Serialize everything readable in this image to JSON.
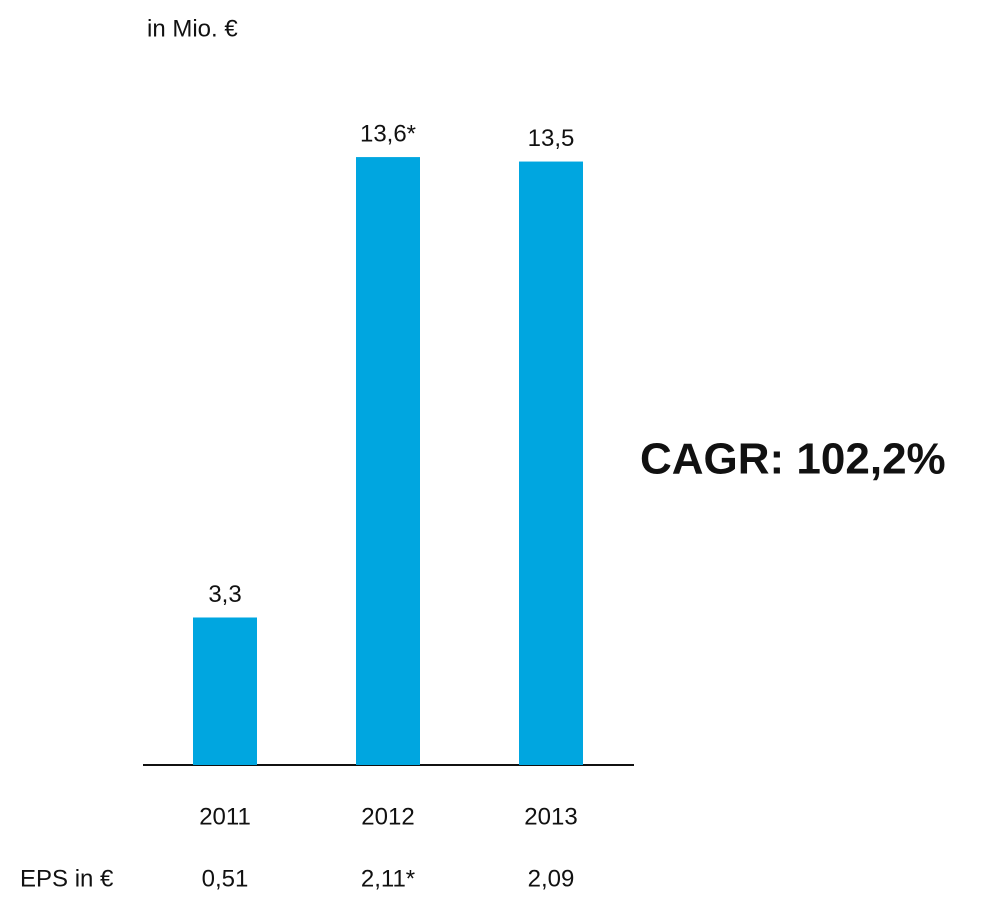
{
  "chart_data": {
    "type": "bar",
    "subtitle": "in Mio. €",
    "annotation": "CAGR: 102,2%",
    "categories": [
      "2011",
      "2012",
      "2013"
    ],
    "values": [
      3.3,
      13.6,
      13.5
    ],
    "value_labels": [
      "3,3",
      "13,6*",
      "13,5"
    ],
    "color": "#00a6e0",
    "eps": {
      "label": "EPS in €",
      "values": [
        0.51,
        2.11,
        2.09
      ],
      "value_labels": [
        "0,51",
        "2,11*",
        "2,09"
      ]
    }
  }
}
